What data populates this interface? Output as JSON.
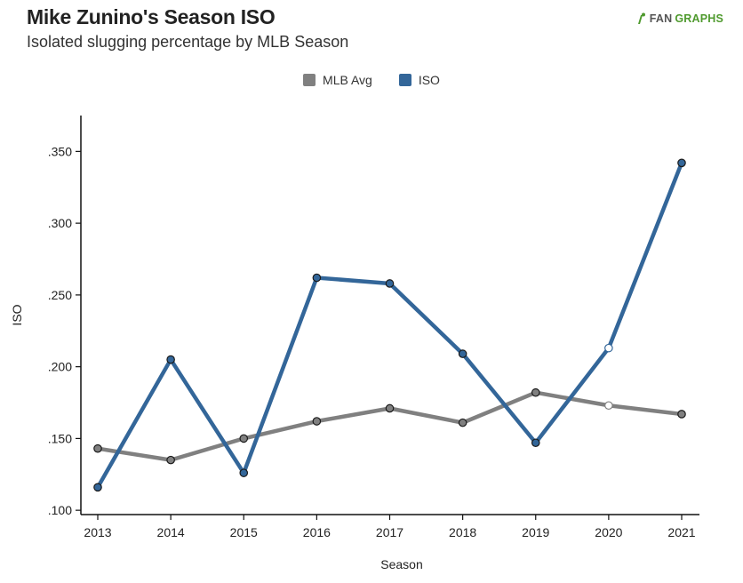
{
  "header": {
    "title": "Mike Zunino's Season ISO",
    "subtitle": "Isolated slugging percentage by MLB Season",
    "logo_fan": "FAN",
    "logo_graphs": "GRAPHS"
  },
  "legend": [
    {
      "label": "MLB Avg",
      "color": "#808080"
    },
    {
      "label": "ISO",
      "color": "#336699"
    }
  ],
  "chart_data": {
    "type": "line",
    "title": "Mike Zunino's Season ISO",
    "subtitle": "Isolated slugging percentage by MLB Season",
    "xlabel": "Season",
    "ylabel": "ISO",
    "x": [
      2013,
      2014,
      2015,
      2016,
      2017,
      2018,
      2019,
      2020,
      2021
    ],
    "x_tick_labels": [
      "2013",
      "2014",
      "2015",
      "2016",
      "2017",
      "2018",
      "2019",
      "2020",
      "2021"
    ],
    "y_ticks": [
      0.1,
      0.15,
      0.2,
      0.25,
      0.3,
      0.35
    ],
    "y_tick_labels": [
      ".100",
      ".150",
      ".200",
      ".250",
      ".300",
      ".350"
    ],
    "ylim": [
      0.097,
      0.375
    ],
    "grid": false,
    "legend_position": "top-center",
    "series": [
      {
        "name": "MLB Avg",
        "color": "#808080",
        "values": [
          0.143,
          0.135,
          0.15,
          0.162,
          0.171,
          0.161,
          0.182,
          0.173,
          0.167
        ],
        "hollow_points": [
          2020
        ]
      },
      {
        "name": "ISO",
        "color": "#336699",
        "values": [
          0.116,
          0.205,
          0.126,
          0.262,
          0.258,
          0.209,
          0.147,
          0.213,
          0.342
        ],
        "hollow_points": [
          2020
        ]
      }
    ]
  }
}
